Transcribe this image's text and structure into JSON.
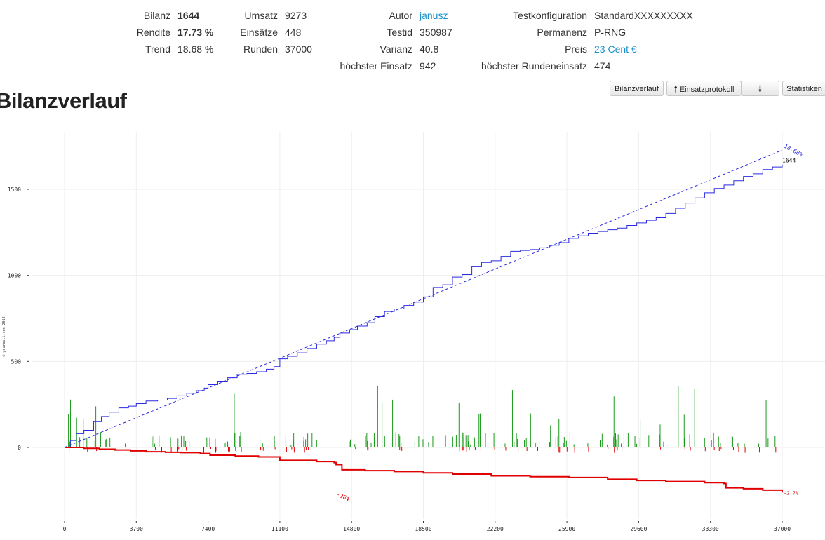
{
  "stats": {
    "bilanz_label": "Bilanz",
    "bilanz_value": "1644",
    "rendite_label": "Rendite",
    "rendite_value": "17.73 %",
    "trend_label": "Trend",
    "trend_value": "18.68 %",
    "umsatz_label": "Umsatz",
    "umsatz_value": "9273",
    "einsaetze_label": "Einsätze",
    "einsaetze_value": "448",
    "runden_label": "Runden",
    "runden_value": "37000",
    "autor_label": "Autor",
    "autor_value": "janusz",
    "testid_label": "Testid",
    "testid_value": "350987",
    "varianz_label": "Varianz",
    "varianz_value": "40.8",
    "hoechster_einsatz_label": "höchster Einsatz",
    "hoechster_einsatz_value": "942",
    "testkonfiguration_label": "Testkonfiguration",
    "testkonfiguration_value": "StandardXXXXXXXXX",
    "permanenz_label": "Permanenz",
    "permanenz_value": "P-RNG",
    "preis_label": "Preis",
    "preis_value": "23 Cent €",
    "hoechster_rundeneinsatz_label": "höchster Rundeneinsatz",
    "hoechster_rundeneinsatz_value": "474"
  },
  "page_title": "Bilanzverlauf",
  "toolbar": {
    "bilanzverlauf_label": "Bilanzverlauf",
    "einsatzprotokoll_label": "Einsatzprotokoll",
    "download_icon": "arrow-down-icon",
    "upload_icon": "arrow-up-icon",
    "statistiken_label": "Statistiken"
  },
  "chart_data": {
    "type": "line",
    "title": "",
    "xlabel": "",
    "ylabel": "",
    "xlim": [
      0,
      37000
    ],
    "ylim": [
      -400,
      1850
    ],
    "x_ticks": [
      0,
      3700,
      7400,
      11100,
      14800,
      18500,
      22200,
      25900,
      29600,
      33300,
      37000
    ],
    "y_ticks": [
      0,
      500,
      1000,
      1500
    ],
    "grid": true,
    "watermark": "© yourouli.com 2018",
    "colors": {
      "balance": "#2a2ae0",
      "trend": "#2a2ae0",
      "loss": "#e00000",
      "win_bar": "#1a9a1a",
      "grid": "#eeeeee"
    },
    "series": [
      {
        "kind": "balance",
        "x": [
          0,
          300,
          600,
          1000,
          1500,
          1900,
          2300,
          2800,
          3300,
          3700,
          4200,
          4800,
          5300,
          5800,
          6300,
          6800,
          7200,
          7400,
          7900,
          8400,
          8900,
          9400,
          9900,
          10400,
          10800,
          11100,
          11500,
          12000,
          12500,
          13000,
          13500,
          13900,
          14200,
          14700,
          15100,
          15600,
          16000,
          16500,
          17000,
          17500,
          18000,
          18500,
          19000,
          19500,
          20000,
          20500,
          21000,
          21500,
          22000,
          22500,
          23000,
          23500,
          24000,
          24500,
          25000,
          25500,
          26000,
          26500,
          27000,
          27500,
          28000,
          28500,
          29000,
          29500,
          30000,
          30500,
          31000,
          31500,
          32000,
          32500,
          33000,
          33500,
          34000,
          34500,
          35000,
          35500,
          36000,
          36500,
          37000
        ],
        "values": [
          0,
          40,
          80,
          100,
          150,
          180,
          205,
          230,
          240,
          255,
          270,
          275,
          285,
          300,
          315,
          330,
          345,
          365,
          385,
          405,
          425,
          430,
          440,
          455,
          470,
          515,
          530,
          550,
          575,
          600,
          620,
          640,
          665,
          685,
          705,
          725,
          760,
          790,
          805,
          825,
          845,
          875,
          930,
          945,
          990,
          1005,
          1050,
          1075,
          1085,
          1110,
          1140,
          1145,
          1150,
          1160,
          1175,
          1190,
          1215,
          1230,
          1245,
          1255,
          1265,
          1275,
          1290,
          1305,
          1320,
          1335,
          1360,
          1390,
          1420,
          1450,
          1480,
          1505,
          1525,
          1550,
          1575,
          1590,
          1615,
          1630,
          1644
        ],
        "label_end": "1644"
      },
      {
        "kind": "trend",
        "x": [
          0,
          37000
        ],
        "values": [
          0,
          1728
        ],
        "label_end": "18.68%"
      },
      {
        "kind": "loss",
        "x": [
          0,
          1000,
          1800,
          2600,
          3400,
          4200,
          5200,
          6000,
          7000,
          7500,
          8800,
          10000,
          11100,
          13000,
          13900,
          14000,
          14300,
          15500,
          17000,
          18500,
          20000,
          22000,
          24000,
          26000,
          28000,
          29500,
          31000,
          33000,
          34000,
          34100,
          35000,
          36000,
          37000
        ],
        "values": [
          0,
          -5,
          -10,
          -15,
          -20,
          -25,
          -28,
          -30,
          -35,
          -45,
          -50,
          -55,
          -75,
          -82,
          -88,
          -100,
          -130,
          -135,
          -140,
          -148,
          -155,
          -165,
          -170,
          -175,
          -185,
          -192,
          -198,
          -205,
          -210,
          -235,
          -240,
          -248,
          -262
        ],
        "label_min": "-264",
        "label_end": "-2.7%"
      }
    ]
  }
}
